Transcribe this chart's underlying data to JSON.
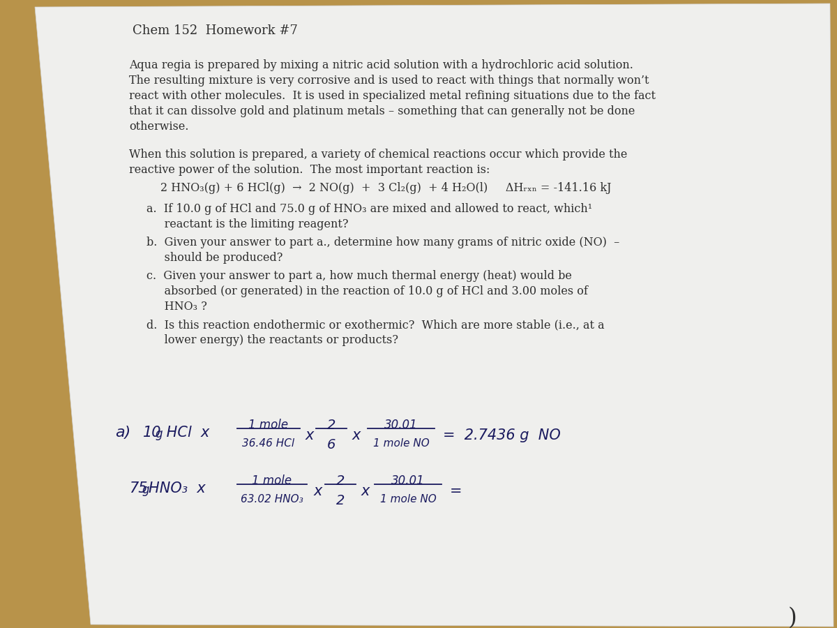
{
  "bg_color": "#b8934a",
  "paper_color": "#efefed",
  "title": "Chem 152  Homework #7",
  "paragraph1_lines": [
    "Aqua regia is prepared by mixing a nitric acid solution with a hydrochloric acid solution.",
    "The resulting mixture is very corrosive and is used to react with things that normally won’t",
    "react with other molecules.  It is used in specialized metal refining situations due to the fact",
    "that it can dissolve gold and platinum metals – something that can generally not be done",
    "otherwise."
  ],
  "paragraph2_lines": [
    "When this solution is prepared, a variety of chemical reactions occur which provide the",
    "reactive power of the solution.  The most important reaction is:"
  ],
  "equation": "2 HNO₃(g) + 6 HCl(g)  →  2 NO(g)  +  3 Cl₂(g)  + 4 H₂O(l)     ΔHᵣₓₙ = -141.16 kJ",
  "qa_lines": [
    "a.  If 10.0 g of HCl and 75.0 g of HNO₃ are mixed and allowed to react, which¹",
    "     reactant is the limiting reagent?"
  ],
  "qb_lines": [
    "b.  Given your answer to part a., determine how many grams of nitric oxide (NO)  –",
    "     should be produced?"
  ],
  "qc_lines": [
    "c.  Given your answer to part a, how much thermal energy (heat) would be",
    "     absorbed (or generated) in the reaction of 10.0 g of HCl and 3.00 moles of",
    "     HNO₃ ?"
  ],
  "qd_lines": [
    "d.  Is this reaction endothermic or exothermic?  Which are more stable (i.e., at a",
    "     lower energy) the reactants or products?"
  ],
  "text_color": "#2d2d2d",
  "handwritten_color": "#1a1a5e",
  "font_size_title": 13,
  "font_size_body": 11.5,
  "font_size_hw": 13
}
